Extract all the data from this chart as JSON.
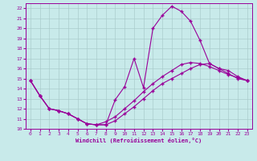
{
  "xlabel": "Windchill (Refroidissement éolien,°C)",
  "bg_color": "#c8eaea",
  "line_color": "#990099",
  "grid_color": "#aacccc",
  "xlim": [
    -0.5,
    23.5
  ],
  "ylim": [
    10,
    22.5
  ],
  "xticks": [
    0,
    1,
    2,
    3,
    4,
    5,
    6,
    7,
    8,
    9,
    10,
    11,
    12,
    13,
    14,
    15,
    16,
    17,
    18,
    19,
    20,
    21,
    22,
    23
  ],
  "yticks": [
    10,
    11,
    12,
    13,
    14,
    15,
    16,
    17,
    18,
    19,
    20,
    21,
    22
  ],
  "series": [
    {
      "x": [
        0,
        1,
        2,
        3,
        4,
        5,
        6,
        7,
        8,
        9,
        10,
        11,
        12,
        13,
        14,
        15,
        16,
        17,
        18,
        19,
        20,
        21,
        22,
        23
      ],
      "y": [
        14.8,
        13.3,
        12.0,
        11.8,
        11.5,
        11.0,
        10.5,
        10.4,
        10.4,
        10.8,
        11.5,
        12.2,
        13.0,
        13.8,
        14.5,
        15.0,
        15.5,
        16.0,
        16.4,
        16.5,
        16.0,
        15.5,
        15.0,
        14.8
      ]
    },
    {
      "x": [
        0,
        1,
        2,
        3,
        4,
        5,
        6,
        7,
        8,
        9,
        10,
        11,
        12,
        13,
        14,
        15,
        16,
        17,
        18,
        19,
        20,
        21,
        22,
        23
      ],
      "y": [
        14.8,
        13.3,
        12.0,
        11.8,
        11.5,
        11.0,
        10.5,
        10.4,
        10.7,
        11.2,
        12.0,
        12.8,
        13.7,
        14.5,
        15.2,
        15.8,
        16.4,
        16.6,
        16.5,
        16.2,
        15.8,
        15.4,
        15.1,
        14.8
      ]
    },
    {
      "x": [
        0,
        1,
        2,
        3,
        4,
        5,
        6,
        7,
        8,
        9,
        10,
        11,
        12,
        13,
        14,
        15,
        16,
        17,
        18,
        19,
        20,
        21,
        22,
        23
      ],
      "y": [
        14.8,
        13.3,
        12.0,
        11.8,
        11.5,
        11.0,
        10.5,
        10.4,
        10.4,
        12.9,
        14.2,
        17.0,
        14.1,
        20.0,
        21.3,
        22.2,
        21.7,
        20.7,
        18.8,
        16.5,
        16.0,
        15.8,
        15.2,
        14.8
      ]
    }
  ]
}
